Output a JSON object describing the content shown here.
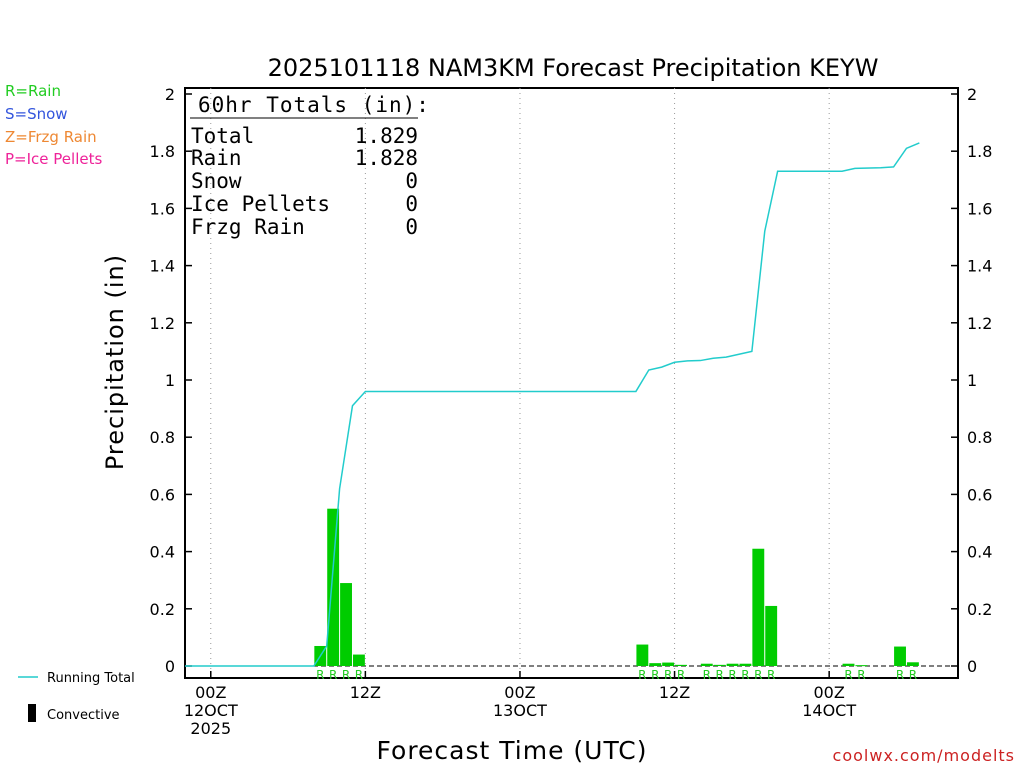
{
  "chart_data": {
    "type": "bar",
    "title": "2025101118 NAM3KM Forecast Precipitation KEYW",
    "xlabel": "Forecast Time (UTC)",
    "ylabel": "Precipitation (in)",
    "ylim": [
      0,
      2
    ],
    "yticks": [
      "0",
      "0.2",
      "0.4",
      "0.6",
      "0.8",
      "1",
      "1.2",
      "1.4",
      "1.6",
      "1.8",
      "2"
    ],
    "xlim_hours": [
      -2,
      58
    ],
    "xticks": [
      {
        "hour": 0,
        "lines": [
          "00Z",
          "12OCT",
          "2025"
        ]
      },
      {
        "hour": 12,
        "lines": [
          "12Z"
        ]
      },
      {
        "hour": 24,
        "lines": [
          "00Z",
          "13OCT"
        ]
      },
      {
        "hour": 36,
        "lines": [
          "12Z"
        ]
      },
      {
        "hour": 48,
        "lines": [
          "00Z",
          "14OCT"
        ]
      }
    ],
    "gridlines_hours": [
      0,
      12,
      24,
      36,
      48
    ],
    "precip_type_legend": [
      {
        "label": "R=Rain",
        "color": "#22cc22"
      },
      {
        "label": "S=Snow",
        "color": "#3355dd"
      },
      {
        "label": "Z=Frzg Rain",
        "color": "#ee8833"
      },
      {
        "label": "P=Ice Pellets",
        "color": "#ee2299"
      }
    ],
    "totals": {
      "header": "60hr Totals (in):",
      "rows": [
        {
          "label": "Total",
          "value": "1.829"
        },
        {
          "label": "Rain",
          "value": "1.828"
        },
        {
          "label": "Snow",
          "value": "0"
        },
        {
          "label": "Ice Pellets",
          "value": "0"
        },
        {
          "label": "Frzg Rain",
          "value": "0"
        }
      ]
    },
    "series_legend": {
      "running_total": "Running Total",
      "convective": "Convective"
    },
    "bar_color": "#00cc00",
    "line_color": "#22cccc",
    "bars": [
      {
        "hour": 9,
        "value": 0.07,
        "type": "R"
      },
      {
        "hour": 10,
        "value": 0.55,
        "type": "R"
      },
      {
        "hour": 11,
        "value": 0.29,
        "type": "R"
      },
      {
        "hour": 12,
        "value": 0.04,
        "type": "R"
      },
      {
        "hour": 34,
        "value": 0.075,
        "type": "R"
      },
      {
        "hour": 35,
        "value": 0.01,
        "type": "R"
      },
      {
        "hour": 36,
        "value": 0.012,
        "type": "R"
      },
      {
        "hour": 37,
        "value": 0.004,
        "type": "R"
      },
      {
        "hour": 39,
        "value": 0.008,
        "type": "R"
      },
      {
        "hour": 40,
        "value": 0.004,
        "type": "R"
      },
      {
        "hour": 41,
        "value": 0.008,
        "type": "R"
      },
      {
        "hour": 42,
        "value": 0.008,
        "type": "R"
      },
      {
        "hour": 43,
        "value": 0.41,
        "type": "R"
      },
      {
        "hour": 44,
        "value": 0.21,
        "type": "R"
      },
      {
        "hour": 50,
        "value": 0.008,
        "type": "R"
      },
      {
        "hour": 51,
        "value": 0.003,
        "type": "R"
      },
      {
        "hour": 54,
        "value": 0.068,
        "type": "R"
      },
      {
        "hour": 55,
        "value": 0.013,
        "type": "R"
      }
    ],
    "running_total": [
      {
        "hour": -2,
        "value": 0
      },
      {
        "hour": 8,
        "value": 0
      },
      {
        "hour": 9,
        "value": 0.07
      },
      {
        "hour": 10,
        "value": 0.62
      },
      {
        "hour": 11,
        "value": 0.91
      },
      {
        "hour": 12,
        "value": 0.96
      },
      {
        "hour": 33,
        "value": 0.96
      },
      {
        "hour": 34,
        "value": 1.035
      },
      {
        "hour": 35,
        "value": 1.045
      },
      {
        "hour": 36,
        "value": 1.062
      },
      {
        "hour": 37,
        "value": 1.067
      },
      {
        "hour": 38,
        "value": 1.068
      },
      {
        "hour": 39,
        "value": 1.076
      },
      {
        "hour": 40,
        "value": 1.08
      },
      {
        "hour": 41,
        "value": 1.09
      },
      {
        "hour": 42,
        "value": 1.1
      },
      {
        "hour": 43,
        "value": 1.52
      },
      {
        "hour": 44,
        "value": 1.73
      },
      {
        "hour": 49,
        "value": 1.73
      },
      {
        "hour": 50,
        "value": 1.74
      },
      {
        "hour": 52,
        "value": 1.742
      },
      {
        "hour": 53,
        "value": 1.745
      },
      {
        "hour": 54,
        "value": 1.81
      },
      {
        "hour": 55,
        "value": 1.829
      }
    ]
  },
  "footer": {
    "credit": "coolwx.com/modelts"
  }
}
